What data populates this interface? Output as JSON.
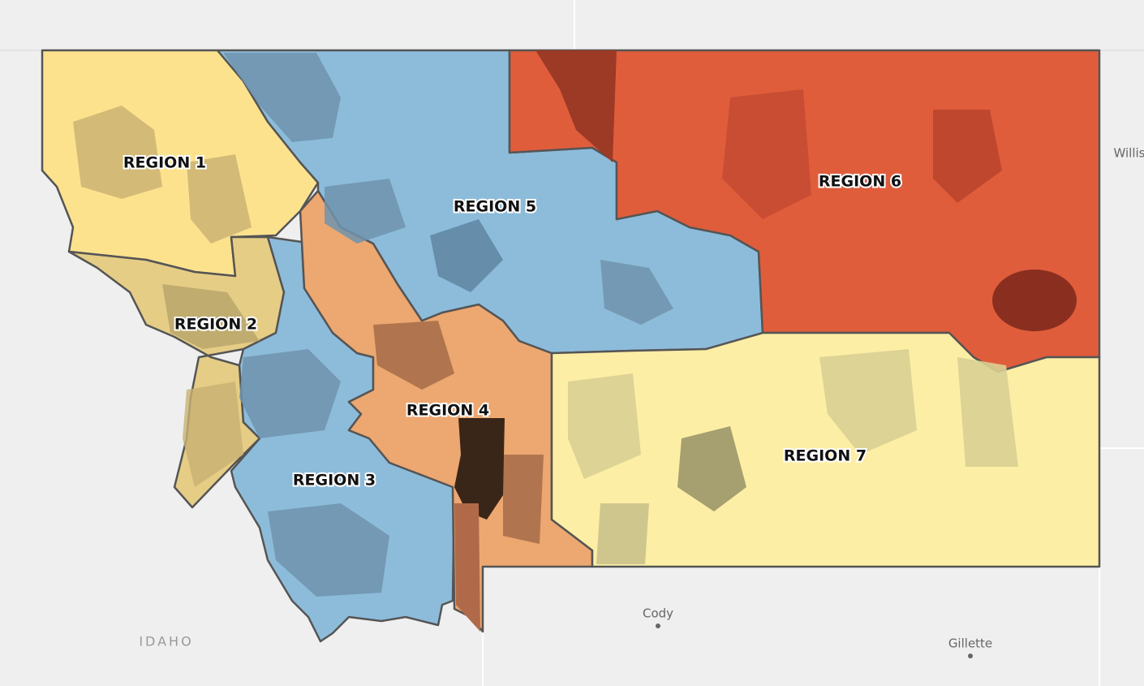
{
  "map": {
    "regions": [
      {
        "label": "REGION 1"
      },
      {
        "label": "REGION 2"
      },
      {
        "label": "REGION 3"
      },
      {
        "label": "REGION 4"
      },
      {
        "label": "REGION 5"
      },
      {
        "label": "REGION 6"
      },
      {
        "label": "REGION 7"
      }
    ],
    "places": [
      {
        "label": "IDAHO"
      },
      {
        "label": "Cody"
      },
      {
        "label": "Gillette"
      },
      {
        "label": "Willis"
      }
    ]
  }
}
